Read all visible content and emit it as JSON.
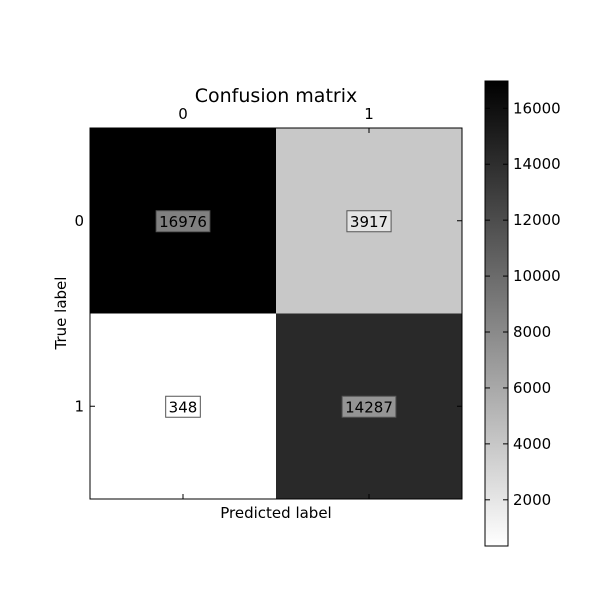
{
  "chart_data": {
    "type": "heatmap",
    "title": "Confusion matrix",
    "xlabel": "Predicted label",
    "ylabel": "True label",
    "x_categories": [
      "0",
      "1"
    ],
    "y_categories": [
      "0",
      "1"
    ],
    "values": [
      [
        16976,
        3917
      ],
      [
        348,
        14287
      ]
    ],
    "colormap": "gray_r",
    "color_range": [
      348,
      16976
    ],
    "colorbar": {
      "ticks": [
        2000,
        4000,
        6000,
        8000,
        10000,
        12000,
        14000,
        16000
      ],
      "tick_labels": [
        "2000",
        "4000",
        "6000",
        "8000",
        "10000",
        "12000",
        "14000",
        "16000"
      ]
    },
    "grid": false,
    "legend": "none"
  }
}
